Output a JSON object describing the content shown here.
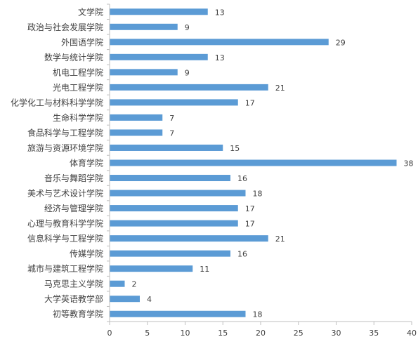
{
  "chart_data": {
    "type": "bar",
    "orientation": "horizontal",
    "categories": [
      "文学院",
      "政治与社会发展学院",
      "外国语学院",
      "数学与统计学院",
      "机电工程学院",
      "光电工程学院",
      "化学化工与材料科学学院",
      "生命科学学院",
      "食品科学与工程学院",
      "旅游与资源环境学院",
      "体育学院",
      "音乐与舞蹈学院",
      "美术与艺术设计学院",
      "经济与管理学院",
      "心理与教育科学学院",
      "信息科学与工程学院",
      "传媒学院",
      "城市与建筑工程学院",
      "马克思主义学院",
      "大学英语教学部",
      "初等教育学院"
    ],
    "values": [
      13,
      9,
      29,
      13,
      9,
      21,
      17,
      7,
      7,
      15,
      38,
      16,
      18,
      17,
      17,
      21,
      16,
      11,
      2,
      4,
      18
    ],
    "x_ticks": [
      "0",
      "5",
      "10",
      "15",
      "20",
      "25",
      "30",
      "35",
      "40"
    ],
    "xlim": [
      0,
      40
    ],
    "grid": false,
    "legend": "none",
    "bar_color": "#5B9BD5",
    "axis_color": "#BFBFBF",
    "text_color": "#404040"
  }
}
